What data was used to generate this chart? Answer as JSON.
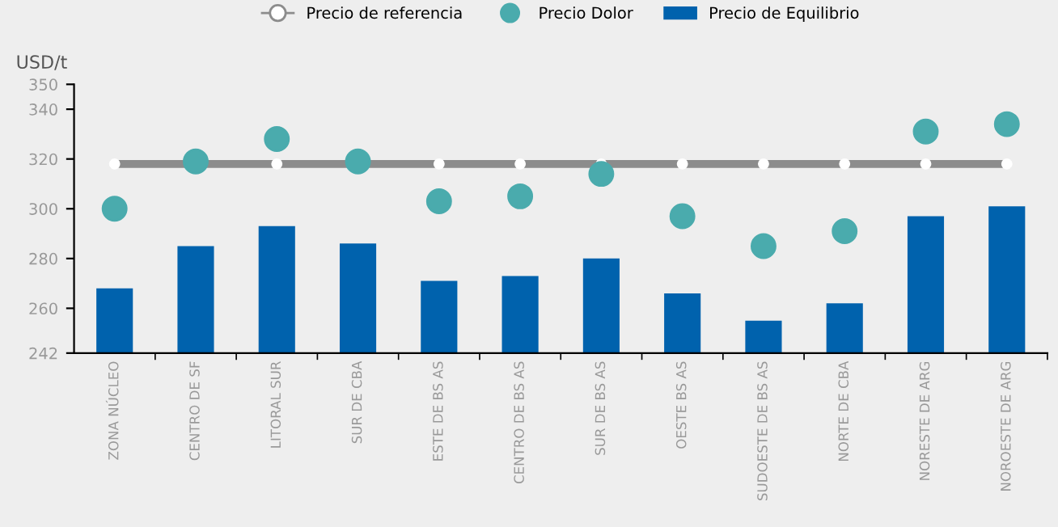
{
  "chart_data": {
    "type": "bar",
    "ylabel": "USD/t",
    "categories": [
      "ZONA NÚCLEO",
      "CENTRO DE SF",
      "LITORAL SUR",
      "SUR DE CBA",
      "ESTE DE BS AS",
      "CENTRO DE BS AS",
      "SUR DE BS AS",
      "OESTE BS AS",
      "SUDOESTE DE BS AS",
      "NORTE DE CBA",
      "NORESTE DE ARG",
      "NOROESTE DE ARG"
    ],
    "series": [
      {
        "name": "Precio de referencia",
        "type": "line",
        "color": "#8c8c8c",
        "marker": "circle",
        "values": [
          318,
          318,
          318,
          318,
          318,
          318,
          318,
          318,
          318,
          318,
          318,
          318
        ]
      },
      {
        "name": "Precio Dolor",
        "type": "scatter",
        "color": "#4aabad",
        "values": [
          300,
          319,
          328,
          319,
          303,
          305,
          314,
          297,
          285,
          291,
          331,
          334
        ]
      },
      {
        "name": "Precio de Equilibrio",
        "color": "#0062ad",
        "values": [
          268,
          285,
          293,
          286,
          271,
          273,
          280,
          266,
          255,
          262,
          297,
          301
        ]
      }
    ],
    "ylim": [
      242,
      350
    ],
    "yticks": [
      242,
      260,
      280,
      300,
      320,
      340,
      350
    ],
    "grid": false,
    "legend": "top"
  }
}
